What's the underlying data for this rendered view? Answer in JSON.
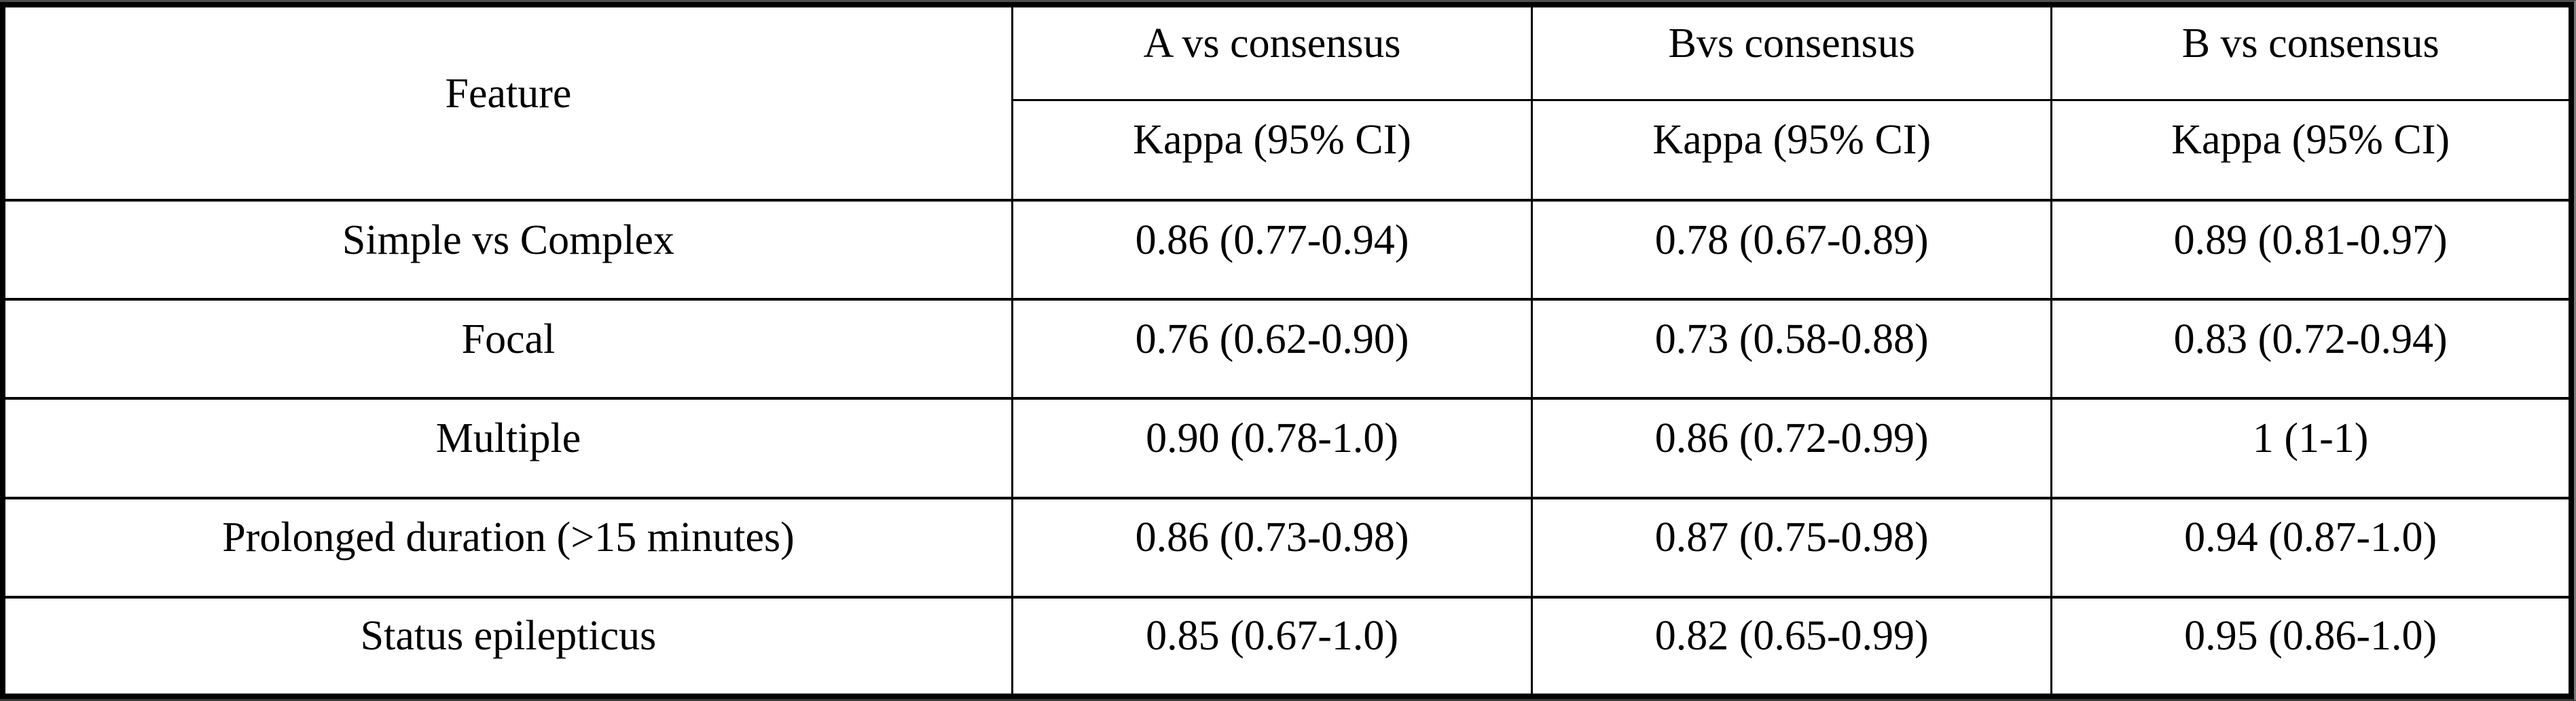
{
  "table": {
    "feature_header": "Feature",
    "columns": [
      {
        "group": "A vs consensus",
        "sub": "Kappa (95% CI)"
      },
      {
        "group": "Bvs consensus",
        "sub": "Kappa (95% CI)"
      },
      {
        "group": "B vs consensus",
        "sub": "Kappa (95% CI)"
      }
    ],
    "rows": [
      {
        "feature": "Simple vs Complex",
        "values": [
          "0.86 (0.77-0.94)",
          "0.78 (0.67-0.89)",
          "0.89 (0.81-0.97)"
        ]
      },
      {
        "feature": "Focal",
        "values": [
          "0.76 (0.62-0.90)",
          "0.73 (0.58-0.88)",
          "0.83 (0.72-0.94)"
        ]
      },
      {
        "feature": "Multiple",
        "values": [
          "0.90 (0.78-1.0)",
          "0.86 (0.72-0.99)",
          "1 (1-1)"
        ]
      },
      {
        "feature": "Prolonged duration (>15 minutes)",
        "values": [
          "0.86 (0.73-0.98)",
          "0.87 (0.75-0.98)",
          "0.94 (0.87-1.0)"
        ]
      },
      {
        "feature": "Status epilepticus",
        "values": [
          "0.85 (0.67-1.0)",
          "0.82 (0.65-0.99)",
          "0.95 (0.86-1.0)"
        ]
      }
    ]
  },
  "colors": {
    "border": "#000000",
    "background": "#ffffff",
    "text": "#000000"
  }
}
